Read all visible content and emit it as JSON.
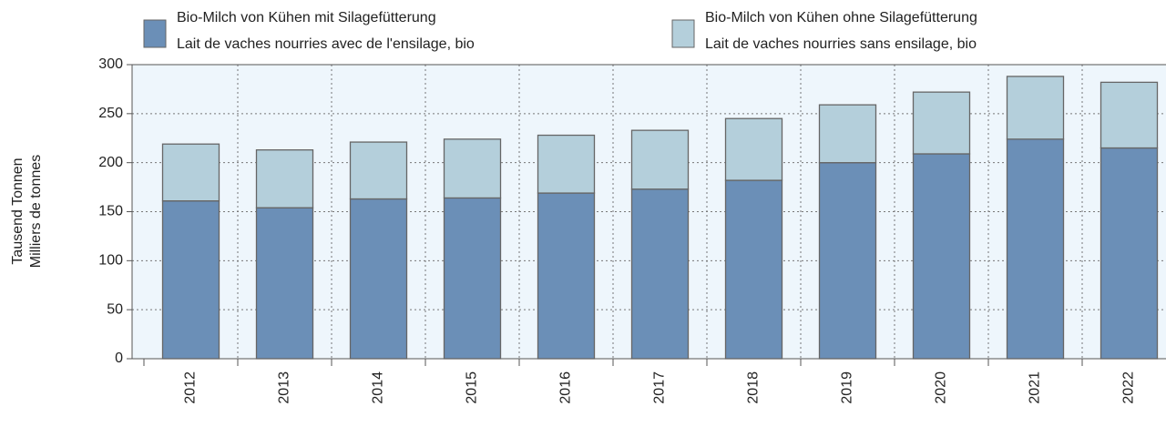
{
  "chart_data": {
    "type": "stacked_bar",
    "ylabel": [
      "Tausend Tonnen",
      "Milliers de tonnes"
    ],
    "categories": [
      "2012",
      "2013",
      "2014",
      "2015",
      "2016",
      "2017",
      "2018",
      "2019",
      "2020",
      "2021",
      "2022"
    ],
    "series": [
      {
        "name": [
          "Bio-Milch von Kühen mit Silagefütterung",
          "Lait de vaches nourries avec de l'ensilage, bio"
        ],
        "color": "#6b8fb7",
        "values": [
          161,
          154,
          163,
          164,
          169,
          173,
          182,
          200,
          209,
          224,
          215
        ]
      },
      {
        "name": [
          "Bio-Milch von Kühen ohne Silagefütterung",
          "Lait de vaches nourries sans ensilage, bio"
        ],
        "color": "#b4cfdb",
        "values": [
          58,
          59,
          58,
          60,
          59,
          60,
          63,
          59,
          63,
          64,
          67
        ]
      }
    ],
    "ylim": [
      0,
      300
    ],
    "yticks": [
      0,
      50,
      100,
      150,
      200,
      250,
      300
    ],
    "grid": true
  }
}
